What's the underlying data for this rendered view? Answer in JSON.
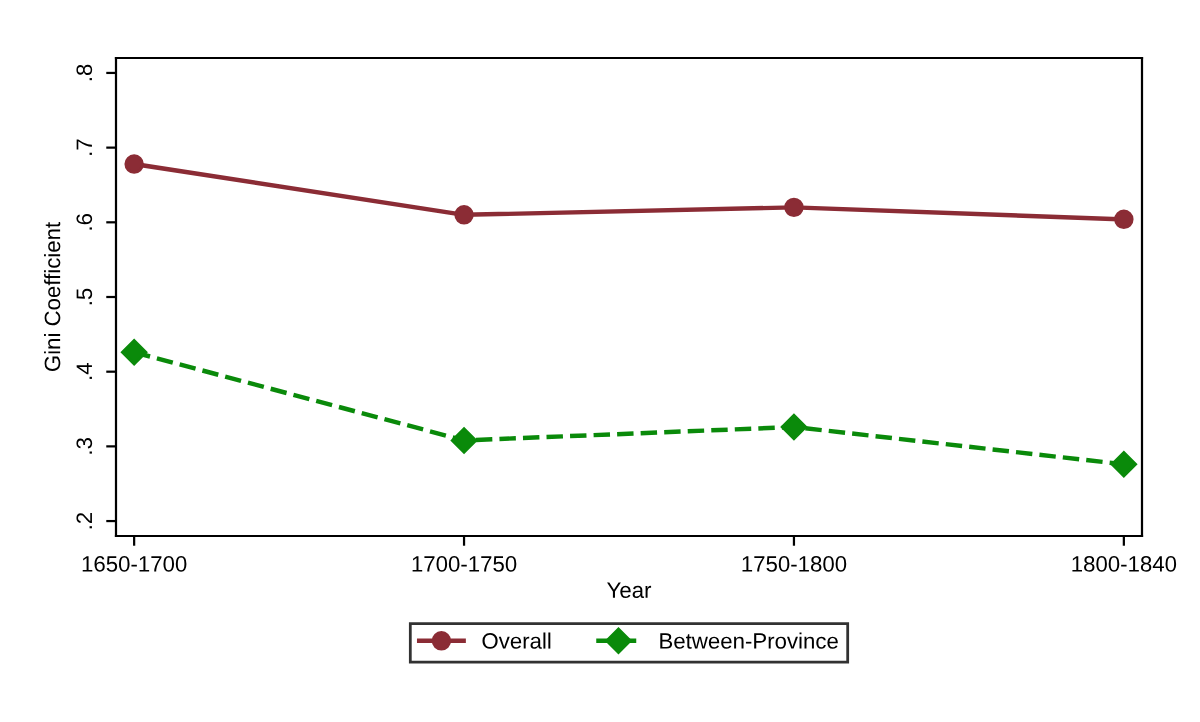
{
  "chart_data": {
    "type": "line",
    "xlabel": "Year",
    "ylabel": "Gini Coefficient",
    "categories": [
      "1650-1700",
      "1700-1750",
      "1750-1800",
      "1800-1840"
    ],
    "series": [
      {
        "name": "Overall",
        "color": "#8b2c35",
        "values": [
          0.678,
          0.61,
          0.62,
          0.604
        ],
        "marker": "circle",
        "line_style": "solid"
      },
      {
        "name": "Between-Province",
        "color": "#0a8a0a",
        "values": [
          0.426,
          0.308,
          0.326,
          0.276
        ],
        "marker": "diamond",
        "line_style": "dashed"
      }
    ],
    "ylim": [
      0.18,
      0.82
    ],
    "yticks": [
      {
        "value": 0.2,
        "label": ".2"
      },
      {
        "value": 0.3,
        "label": ".3"
      },
      {
        "value": 0.4,
        "label": ".4"
      },
      {
        "value": 0.5,
        "label": ".5"
      },
      {
        "value": 0.6,
        "label": ".6"
      },
      {
        "value": 0.7,
        "label": ".7"
      },
      {
        "value": 0.8,
        "label": ".8"
      }
    ],
    "grid": false,
    "legend": "bottom"
  }
}
